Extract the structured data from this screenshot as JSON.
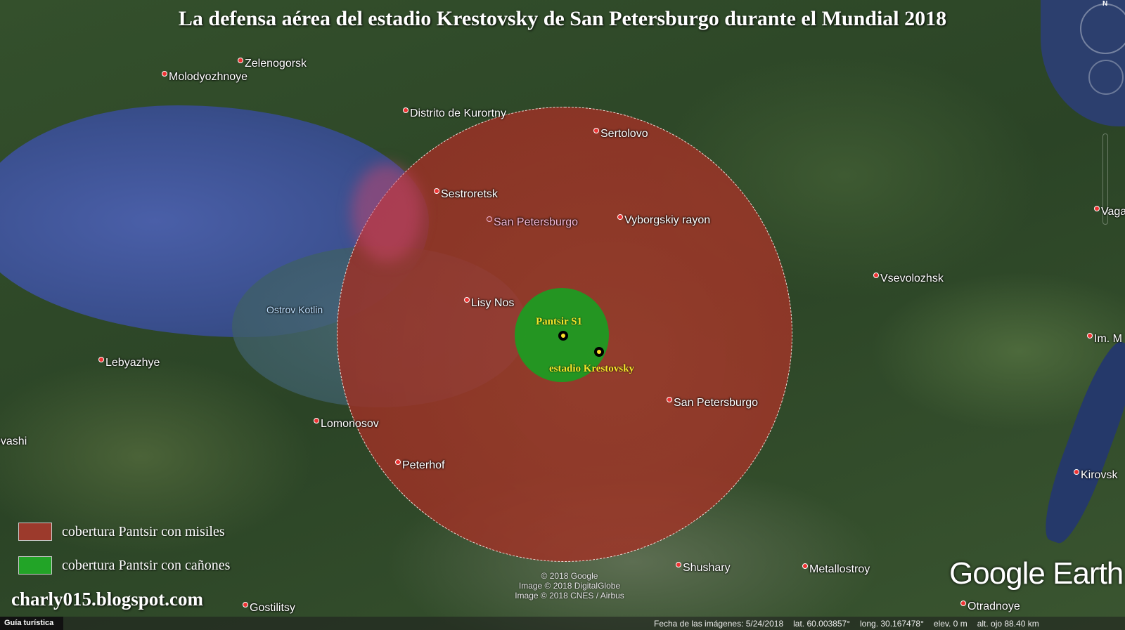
{
  "title": "La defensa aérea del estadio Krestovsky de San Petersburgo durante el Mundial 2018",
  "sites": {
    "pantsir": "Pantsir S1",
    "stadium": "estadio Krestovsky"
  },
  "places": [
    "Zelenogorsk",
    "Molodyozhnoye",
    "Distrito de Kurortny",
    "Sertolovo",
    "Sestroretsk",
    "San Petersburgo",
    "Vyborgskiy rayon",
    "Lisy Nos",
    "Ostrov Kotlin",
    "Lebyazhye",
    "Lomonosov",
    "Peterhof",
    "San Petersburgo",
    "Vsevolozhsk",
    "Vaga",
    "Im. M",
    "Kirovsk",
    "Shushary",
    "Metallostroy",
    "Otradnoye",
    "ovashi",
    "Gostilitsy"
  ],
  "legend": [
    {
      "label": "cobertura Pantsir con misiles",
      "color": "#9c3a2c"
    },
    {
      "label": "cobertura Pantsir con cañones",
      "color": "#22a427"
    }
  ],
  "blog": "charly015.blogspot.com",
  "credits": [
    "© 2018 Google",
    "Image © 2018 DigitalGlobe",
    "Image © 2018 CNES / Airbus"
  ],
  "brand": "Google Earth",
  "nav": {
    "north": "N"
  },
  "status": {
    "guide": "Guía turística",
    "date": "Fecha de las imágenes: 5/24/2018",
    "lat": "lat.   60.003857°",
    "long": "long.   30.167478°",
    "elev": "elev.     0 m",
    "alt": "alt. ojo  88.40 km"
  }
}
